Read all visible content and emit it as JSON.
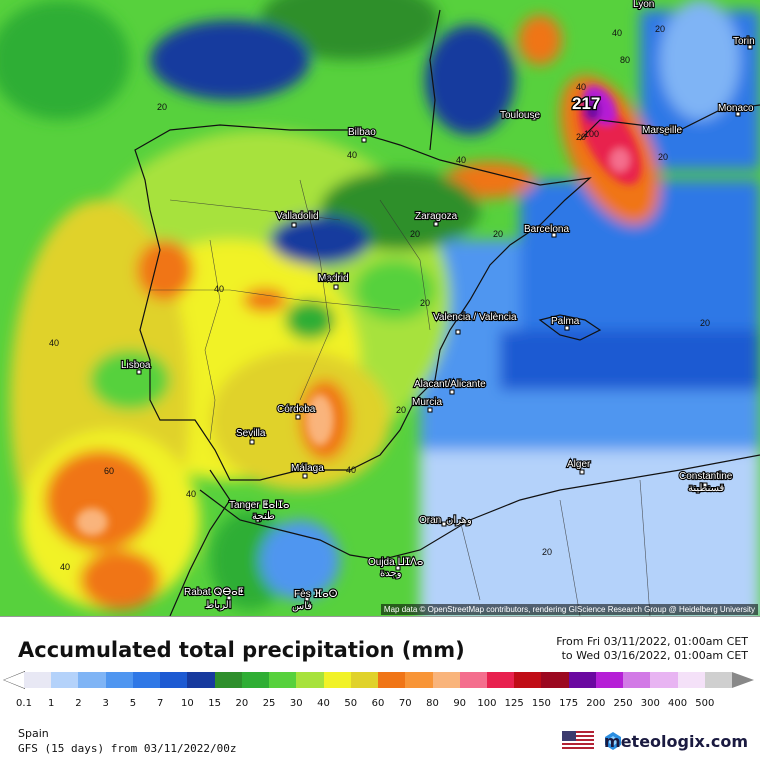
{
  "title": "Accumulated total precipitation (mm)",
  "range": {
    "from": "From Fri 03/11/2022, 01:00am CET",
    "to": "to Wed 03/16/2022, 01:00am CET"
  },
  "region": "Spain",
  "model": "GFS (15 days) from 03/11/2022/00z",
  "brand": "meteologix.com",
  "attribution": "Map data © OpenStreetMap contributors, rendering GIScience Research Group @ Heidelberg University",
  "max_value": "217",
  "cities": [
    "Lyon",
    "Torin",
    "Monaco",
    "Toulouse",
    "Marseille",
    "Bilbao",
    "Valladolid",
    "Zaragoza",
    "Barcelona",
    "Madrid",
    "Valencia / València",
    "Palma",
    "Lisboa",
    "Alacant/Alicante",
    "Murcia",
    "Córdoba",
    "Sevilla",
    "Málaga",
    "Alger",
    "Constantine",
    "قسنطينة",
    "Tanger ⵟⴰⵏⵊⴰ",
    "طنجة",
    "Oran",
    "وهران",
    "Oujda ⵡⵊⴷⴰ",
    "وجدة",
    "Rabat ⵕⴱⴰⵟ",
    "الرباط",
    "Fès ⴼⴰⵙ",
    "فاس"
  ],
  "contour_labels": [
    "20",
    "40",
    "40",
    "20",
    "20",
    "20",
    "20",
    "40",
    "40",
    "40",
    "40",
    "60",
    "40",
    "40",
    "40",
    "20",
    "40",
    "20",
    "20",
    "80",
    "100",
    "20",
    "20"
  ],
  "legend": {
    "values": [
      "0.1",
      "1",
      "2",
      "3",
      "5",
      "7",
      "10",
      "15",
      "20",
      "25",
      "30",
      "40",
      "50",
      "60",
      "70",
      "80",
      "90",
      "100",
      "125",
      "150",
      "175",
      "200",
      "250",
      "300",
      "400",
      "500"
    ],
    "colors": [
      "#e8e8f4",
      "#b4d2fa",
      "#7fb4f5",
      "#4f96f0",
      "#2f78e6",
      "#1d5ad2",
      "#173a9e",
      "#2e8f2c",
      "#2fae34",
      "#57d13d",
      "#a7e23c",
      "#f1f227",
      "#e0d22a",
      "#f07516",
      "#f89537",
      "#f9b47b",
      "#f46e8d",
      "#e8214e",
      "#c00c16",
      "#9b0820",
      "#6b08a0",
      "#b51fd6",
      "#d27ae6",
      "#e8b4f2",
      "#f4e1f8",
      "#cfcfcf"
    ]
  }
}
